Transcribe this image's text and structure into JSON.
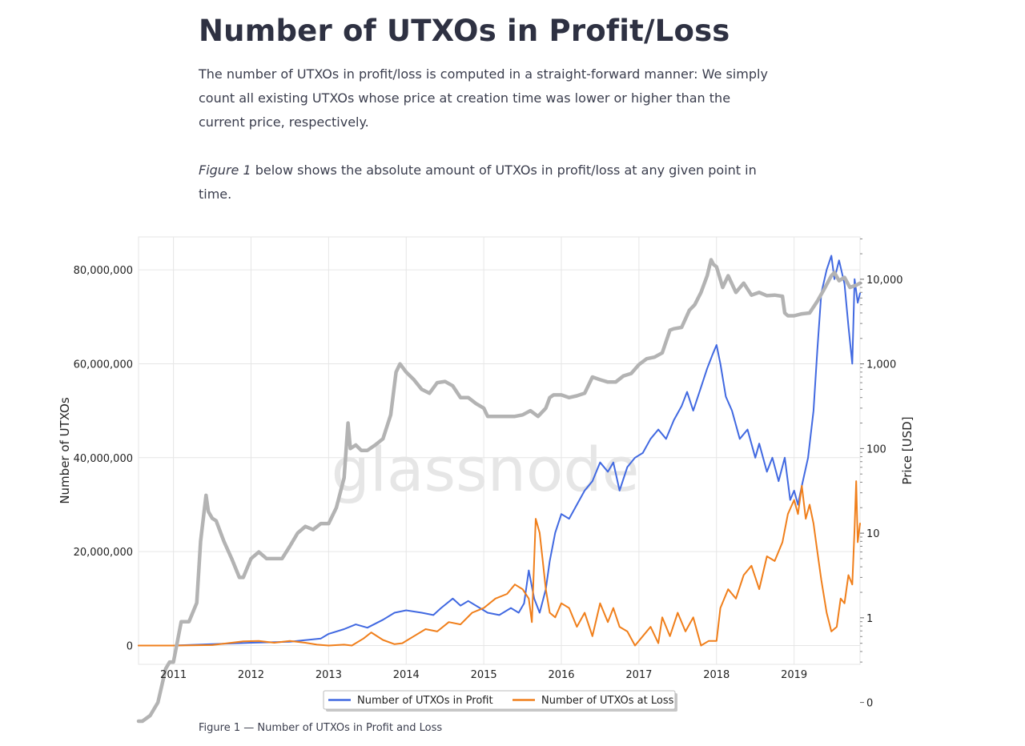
{
  "article": {
    "title": "Number of UTXOs in Profit/Loss",
    "paragraph1": "The number of UTXOs in profit/loss is computed in a straight-forward manner: We simply count all existing UTXOs whose price at creation time was lower or higher than the current price, respectively.",
    "paragraph2_em": "Figure 1",
    "paragraph2_rest": " below shows the absolute amount of UTXOs in profit/loss at any given point in time."
  },
  "caption": "Figure 1 — Number of UTXOs in Profit and Loss",
  "chart_data": {
    "type": "line",
    "watermark": "glassnode",
    "xlabel": "",
    "ylabel": "Number of UTXOs",
    "y2label": "Price [USD]",
    "xlim": [
      2010.55,
      2019.85
    ],
    "ylim": [
      -4000000,
      87000000
    ],
    "y2lim_log": [
      -0.55,
      4.5
    ],
    "x_ticks": [
      2011,
      2012,
      2013,
      2014,
      2015,
      2016,
      2017,
      2018,
      2019
    ],
    "x_tick_labels": [
      "2011",
      "2012",
      "2013",
      "2014",
      "2015",
      "2016",
      "2017",
      "2018",
      "2019"
    ],
    "y_ticks": [
      0,
      20000000,
      40000000,
      60000000,
      80000000
    ],
    "y_tick_labels": [
      "0",
      "20,000,000",
      "40,000,000",
      "60,000,000",
      "80,000,000"
    ],
    "y2_ticks": [
      0.1,
      1,
      10,
      100,
      1000,
      10000
    ],
    "y2_tick_labels": [
      "0",
      "1",
      "10",
      "100",
      "1,000",
      "10,000"
    ],
    "grid": true,
    "legend_position": "bottom-center",
    "series": [
      {
        "name": "Number of UTXOs in Profit",
        "color": "#4169e1",
        "axis": "left",
        "x": [
          2010.55,
          2011.0,
          2011.5,
          2012.0,
          2012.5,
          2012.9,
          2013.0,
          2013.2,
          2013.35,
          2013.5,
          2013.7,
          2013.85,
          2014.0,
          2014.2,
          2014.35,
          2014.45,
          2014.6,
          2014.7,
          2014.8,
          2014.95,
          2015.05,
          2015.2,
          2015.35,
          2015.45,
          2015.52,
          2015.58,
          2015.65,
          2015.72,
          2015.8,
          2015.85,
          2015.92,
          2016.0,
          2016.1,
          2016.2,
          2016.3,
          2016.4,
          2016.5,
          2016.6,
          2016.67,
          2016.75,
          2016.85,
          2016.95,
          2017.05,
          2017.15,
          2017.25,
          2017.35,
          2017.45,
          2017.55,
          2017.62,
          2017.7,
          2017.8,
          2017.88,
          2017.95,
          2018.0,
          2018.05,
          2018.12,
          2018.2,
          2018.3,
          2018.4,
          2018.5,
          2018.55,
          2018.65,
          2018.72,
          2018.8,
          2018.88,
          2018.95,
          2019.0,
          2019.05,
          2019.1,
          2019.18,
          2019.25,
          2019.3,
          2019.35,
          2019.42,
          2019.48,
          2019.52,
          2019.58,
          2019.65,
          2019.7,
          2019.75,
          2019.78,
          2019.82,
          2019.85
        ],
        "values": [
          0,
          0,
          300000,
          600000,
          800000,
          1500000,
          2500000,
          3500000,
          4500000,
          3800000,
          5500000,
          7000000,
          7500000,
          7000000,
          6500000,
          8000000,
          10000000,
          8500000,
          9500000,
          8000000,
          7000000,
          6500000,
          8000000,
          7000000,
          9000000,
          16000000,
          10000000,
          7000000,
          12000000,
          18000000,
          24000000,
          28000000,
          27000000,
          30000000,
          33000000,
          35000000,
          39000000,
          37000000,
          39000000,
          33000000,
          38000000,
          40000000,
          41000000,
          44000000,
          46000000,
          44000000,
          48000000,
          51000000,
          54000000,
          50000000,
          55000000,
          59000000,
          62000000,
          64000000,
          60000000,
          53000000,
          50000000,
          44000000,
          46000000,
          40000000,
          43000000,
          37000000,
          40000000,
          35000000,
          40000000,
          31000000,
          33000000,
          30000000,
          34000000,
          40000000,
          50000000,
          63000000,
          75000000,
          80000000,
          83000000,
          78000000,
          82000000,
          77000000,
          68000000,
          60000000,
          78000000,
          73000000,
          75000000
        ]
      },
      {
        "name": "Number of UTXOs at Loss",
        "color": "#f07f1b",
        "axis": "left",
        "x": [
          2010.55,
          2011.0,
          2011.5,
          2011.9,
          2012.1,
          2012.3,
          2012.5,
          2012.7,
          2012.85,
          2013.0,
          2013.2,
          2013.3,
          2013.45,
          2013.55,
          2013.7,
          2013.85,
          2013.95,
          2014.1,
          2014.25,
          2014.4,
          2014.55,
          2014.7,
          2014.85,
          2015.0,
          2015.15,
          2015.3,
          2015.4,
          2015.5,
          2015.58,
          2015.62,
          2015.67,
          2015.72,
          2015.76,
          2015.8,
          2015.85,
          2015.92,
          2016.0,
          2016.1,
          2016.2,
          2016.3,
          2016.4,
          2016.5,
          2016.6,
          2016.67,
          2016.75,
          2016.85,
          2016.95,
          2017.05,
          2017.15,
          2017.25,
          2017.3,
          2017.4,
          2017.5,
          2017.6,
          2017.7,
          2017.8,
          2017.9,
          2018.0,
          2018.05,
          2018.15,
          2018.25,
          2018.35,
          2018.45,
          2018.55,
          2018.65,
          2018.75,
          2018.85,
          2018.92,
          2019.0,
          2019.05,
          2019.1,
          2019.15,
          2019.2,
          2019.25,
          2019.3,
          2019.35,
          2019.42,
          2019.48,
          2019.55,
          2019.6,
          2019.65,
          2019.7,
          2019.75,
          2019.78,
          2019.8,
          2019.82,
          2019.85
        ],
        "values": [
          0,
          0,
          100000,
          900000,
          1000000,
          600000,
          1000000,
          600000,
          200000,
          0,
          200000,
          0,
          1500000,
          2800000,
          1200000,
          300000,
          500000,
          2000000,
          3500000,
          3000000,
          5000000,
          4500000,
          7000000,
          8000000,
          10000000,
          11000000,
          13000000,
          12000000,
          10000000,
          5000000,
          27000000,
          24000000,
          18000000,
          12000000,
          7000000,
          6000000,
          9000000,
          8000000,
          4000000,
          7000000,
          2000000,
          9000000,
          5000000,
          8000000,
          4000000,
          3000000,
          0,
          2000000,
          4000000,
          500000,
          6000000,
          2000000,
          7000000,
          3000000,
          6000000,
          0,
          1000000,
          1000000,
          8000000,
          12000000,
          10000000,
          15000000,
          17000000,
          12000000,
          19000000,
          18000000,
          22000000,
          28000000,
          31000000,
          28000000,
          34000000,
          27000000,
          30000000,
          26000000,
          20000000,
          14000000,
          7000000,
          3000000,
          4000000,
          10000000,
          9000000,
          15000000,
          13000000,
          25000000,
          35000000,
          22000000,
          26000000
        ]
      },
      {
        "name": "Price",
        "color": "#b3b3b3",
        "axis": "right",
        "x": [
          2010.55,
          2010.6,
          2010.7,
          2010.8,
          2010.9,
          2010.95,
          2011.0,
          2011.1,
          2011.2,
          2011.3,
          2011.35,
          2011.42,
          2011.45,
          2011.5,
          2011.55,
          2011.65,
          2011.75,
          2011.85,
          2011.9,
          2012.0,
          2012.1,
          2012.2,
          2012.3,
          2012.4,
          2012.5,
          2012.6,
          2012.7,
          2012.8,
          2012.9,
          2013.0,
          2013.1,
          2013.2,
          2013.25,
          2013.28,
          2013.35,
          2013.42,
          2013.5,
          2013.6,
          2013.7,
          2013.8,
          2013.87,
          2013.92,
          2014.0,
          2014.1,
          2014.2,
          2014.3,
          2014.4,
          2014.5,
          2014.6,
          2014.7,
          2014.8,
          2014.9,
          2015.0,
          2015.05,
          2015.2,
          2015.4,
          2015.5,
          2015.6,
          2015.7,
          2015.8,
          2015.85,
          2015.9,
          2016.0,
          2016.1,
          2016.2,
          2016.3,
          2016.4,
          2016.5,
          2016.6,
          2016.7,
          2016.8,
          2016.9,
          2017.0,
          2017.1,
          2017.2,
          2017.3,
          2017.4,
          2017.45,
          2017.55,
          2017.65,
          2017.72,
          2017.8,
          2017.88,
          2017.93,
          2017.96,
          2018.0,
          2018.08,
          2018.15,
          2018.25,
          2018.35,
          2018.45,
          2018.55,
          2018.65,
          2018.75,
          2018.85,
          2018.88,
          2018.92,
          2019.0,
          2019.1,
          2019.2,
          2019.3,
          2019.4,
          2019.48,
          2019.52,
          2019.58,
          2019.65,
          2019.72,
          2019.8,
          2019.85
        ],
        "values": [
          0.06,
          0.06,
          0.07,
          0.1,
          0.25,
          0.3,
          0.3,
          0.9,
          0.9,
          1.5,
          8,
          28,
          18,
          15,
          14,
          8,
          5,
          3,
          3,
          5,
          6,
          5,
          5,
          5,
          7,
          10,
          12,
          11,
          13,
          13,
          20,
          45,
          200,
          100,
          110,
          95,
          95,
          110,
          130,
          250,
          800,
          1000,
          800,
          650,
          500,
          450,
          600,
          620,
          550,
          400,
          400,
          340,
          300,
          240,
          240,
          240,
          250,
          280,
          240,
          300,
          400,
          430,
          430,
          400,
          420,
          450,
          700,
          650,
          610,
          610,
          720,
          770,
          980,
          1150,
          1200,
          1350,
          2500,
          2600,
          2700,
          4300,
          5000,
          7000,
          11000,
          17000,
          15000,
          14000,
          8000,
          11000,
          7000,
          9000,
          6500,
          7000,
          6400,
          6500,
          6300,
          4000,
          3700,
          3700,
          3900,
          4000,
          5500,
          8000,
          11000,
          12000,
          9600,
          10500,
          8000,
          8500,
          9000
        ]
      }
    ]
  }
}
